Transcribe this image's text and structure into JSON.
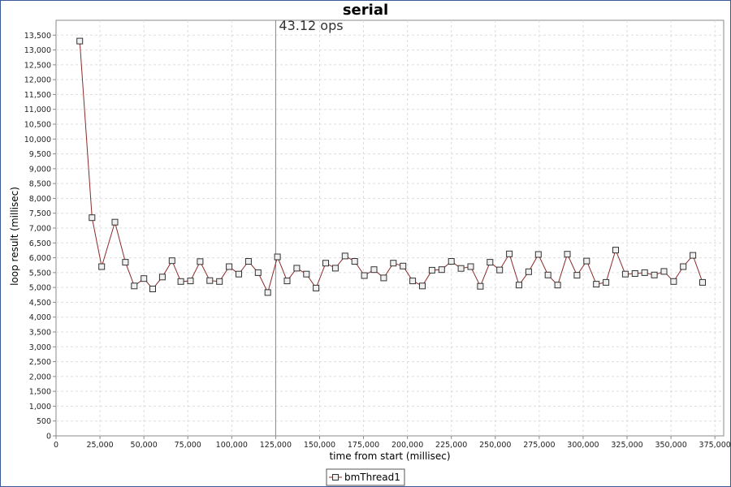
{
  "chart_data": {
    "type": "line",
    "title": "serial",
    "xlabel": "time from start (millisec)",
    "ylabel": "loop result (millisec)",
    "xlim": [
      0,
      380000
    ],
    "ylim": [
      0,
      14000
    ],
    "x_ticks": [
      "0",
      "25,000",
      "50,000",
      "75,000",
      "100,000",
      "125,000",
      "150,000",
      "175,000",
      "200,000",
      "225,000",
      "250,000",
      "275,000",
      "300,000",
      "325,000",
      "350,000",
      "375,000"
    ],
    "y_ticks": [
      "0",
      "500",
      "1,000",
      "1,500",
      "2,000",
      "2,500",
      "3,000",
      "3,500",
      "4,000",
      "4,500",
      "5,000",
      "5,500",
      "6,000",
      "6,500",
      "7,000",
      "7,500",
      "8,000",
      "8,500",
      "9,000",
      "9,500",
      "10,000",
      "10,500",
      "11,000",
      "11,500",
      "12,000",
      "12,500",
      "13,000",
      "13,500"
    ],
    "grid": true,
    "legend_position": "bottom",
    "series": [
      {
        "name": "bmThread1",
        "color": "#8b2a2a",
        "x": [
          13500,
          20500,
          26000,
          33500,
          39500,
          44500,
          50000,
          55000,
          60500,
          66000,
          71000,
          76500,
          82000,
          87500,
          93000,
          98500,
          104000,
          109500,
          115000,
          120500,
          126000,
          131500,
          137000,
          142500,
          148000,
          153500,
          159000,
          164500,
          170000,
          175500,
          181000,
          186500,
          192000,
          197500,
          203000,
          208500,
          214000,
          219500,
          225000,
          230500,
          236000,
          241500,
          247000,
          252500,
          258000,
          263500,
          269000,
          274500,
          280000,
          285500,
          291000,
          296500,
          302000,
          307500,
          313000,
          318500,
          324000,
          329500,
          335000,
          340500,
          346000,
          351500,
          357000,
          362500,
          368000
        ],
        "y": [
          13300,
          7350,
          5700,
          7200,
          5850,
          5050,
          5300,
          4950,
          5350,
          5900,
          5200,
          5220,
          5870,
          5230,
          5200,
          5700,
          5450,
          5880,
          5500,
          4830,
          6030,
          5220,
          5650,
          5450,
          4980,
          5820,
          5650,
          6060,
          5880,
          5400,
          5600,
          5320,
          5820,
          5720,
          5220,
          5050,
          5580,
          5600,
          5880,
          5640,
          5700,
          5040,
          5850,
          5590,
          6130,
          5080,
          5530,
          6110,
          5420,
          5080,
          6120,
          5410,
          5890,
          5110,
          5170,
          6260,
          5450,
          5470,
          5500,
          5420,
          5540,
          5200,
          5700,
          6080,
          5170
        ]
      }
    ],
    "marker": {
      "x": 125000,
      "label": "43.12 ops"
    }
  }
}
